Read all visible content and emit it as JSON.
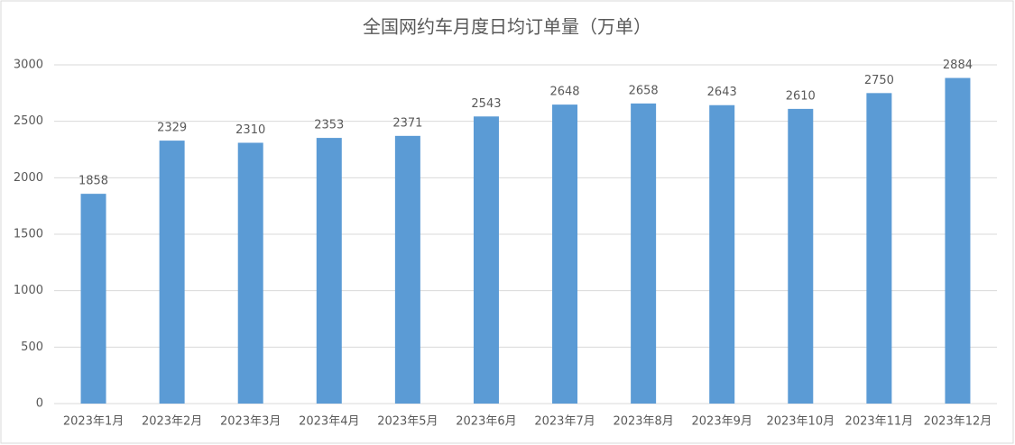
{
  "chart_data": {
    "type": "bar",
    "title": "全国网约车月度日均订单量（万单）",
    "categories": [
      "2023年1月",
      "2023年2月",
      "2023年3月",
      "2023年4月",
      "2023年5月",
      "2023年6月",
      "2023年7月",
      "2023年8月",
      "2023年9月",
      "2023年10月",
      "2023年11月",
      "2023年12月"
    ],
    "values": [
      1858,
      2329,
      2310,
      2353,
      2371,
      2543,
      2648,
      2658,
      2643,
      2610,
      2750,
      2884
    ],
    "color": "#5b9bd5",
    "ylim": [
      0,
      3000
    ],
    "yticks": [
      0,
      500,
      1000,
      1500,
      2000,
      2500,
      3000
    ],
    "grid": true
  }
}
